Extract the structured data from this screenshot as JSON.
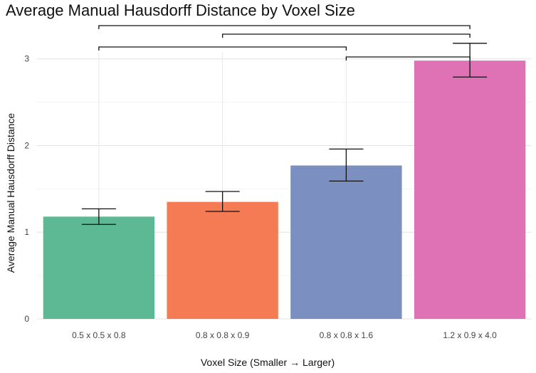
{
  "chart_data": {
    "type": "bar",
    "title": "Average Manual Hausdorff Distance by Voxel Size",
    "xlabel": "Voxel Size (Smaller → Larger)",
    "ylabel": "Average Manual Hausdorff Distance",
    "categories": [
      "0.5 x 0.5 x 0.8",
      "0.8 x 0.8 x 0.9",
      "0.8 x 0.8 x 1.6",
      "1.2 x 0.9 x 4.0"
    ],
    "values": [
      1.18,
      1.35,
      1.77,
      2.98
    ],
    "error_low": [
      1.09,
      1.24,
      1.59,
      2.79
    ],
    "error_high": [
      1.27,
      1.47,
      1.96,
      3.18
    ],
    "colors": [
      "#5cb993",
      "#f47b53",
      "#7b8fc0",
      "#df72b4"
    ],
    "ylim": [
      0,
      3.4
    ],
    "yticks": [
      0,
      1,
      2,
      3
    ],
    "grid": true,
    "legend": "none",
    "significance_brackets": [
      [
        0,
        3
      ],
      [
        1,
        3
      ],
      [
        0,
        2
      ],
      [
        2,
        3
      ]
    ]
  }
}
